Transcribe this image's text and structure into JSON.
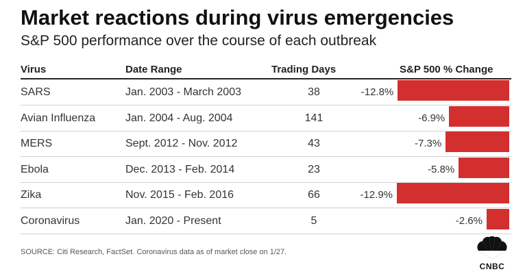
{
  "title": "Market reactions during virus emergencies",
  "subtitle": "S&P 500 performance over the course of each outbreak",
  "headers": {
    "virus": "Virus",
    "date_range": "Date Range",
    "trading_days": "Trading Days",
    "change": "S&P 500 % Change"
  },
  "rows": [
    {
      "virus": "SARS",
      "date_range": "Jan. 2003 - March 2003",
      "trading_days": "38",
      "change_label": "-12.8%"
    },
    {
      "virus": "Avian Influenza",
      "date_range": "Jan. 2004 - Aug. 2004",
      "trading_days": "141",
      "change_label": "-6.9%"
    },
    {
      "virus": "MERS",
      "date_range": "Sept. 2012 - Nov. 2012",
      "trading_days": "43",
      "change_label": "-7.3%"
    },
    {
      "virus": "Ebola",
      "date_range": "Dec. 2013 - Feb. 2014",
      "trading_days": "23",
      "change_label": "-5.8%"
    },
    {
      "virus": "Zika",
      "date_range": "Nov. 2015 - Feb. 2016",
      "trading_days": "66",
      "change_label": "-12.9%"
    },
    {
      "virus": "Coronavirus",
      "date_range": "Jan. 2020 - Present",
      "trading_days": "5",
      "change_label": "-2.6%"
    }
  ],
  "source": "SOURCE: Citi Research, FactSet. Coronavirus data as of market close on 1/27.",
  "logo": {
    "text": "CNBC",
    "icon": "cnbc-peacock-icon"
  },
  "colors": {
    "bar": "#d32f2f",
    "text": "#222222"
  },
  "chart_data": {
    "type": "bar",
    "orientation": "horizontal",
    "title": "Market reactions during virus emergencies",
    "subtitle": "S&P 500 performance over the course of each outbreak",
    "categories": [
      "SARS",
      "Avian Influenza",
      "MERS",
      "Ebola",
      "Zika",
      "Coronavirus"
    ],
    "values": [
      -12.8,
      -6.9,
      -7.3,
      -5.8,
      -12.9,
      -2.6
    ],
    "ylabel": "S&P 500 % Change",
    "xlim": [
      -12.9,
      0
    ]
  }
}
